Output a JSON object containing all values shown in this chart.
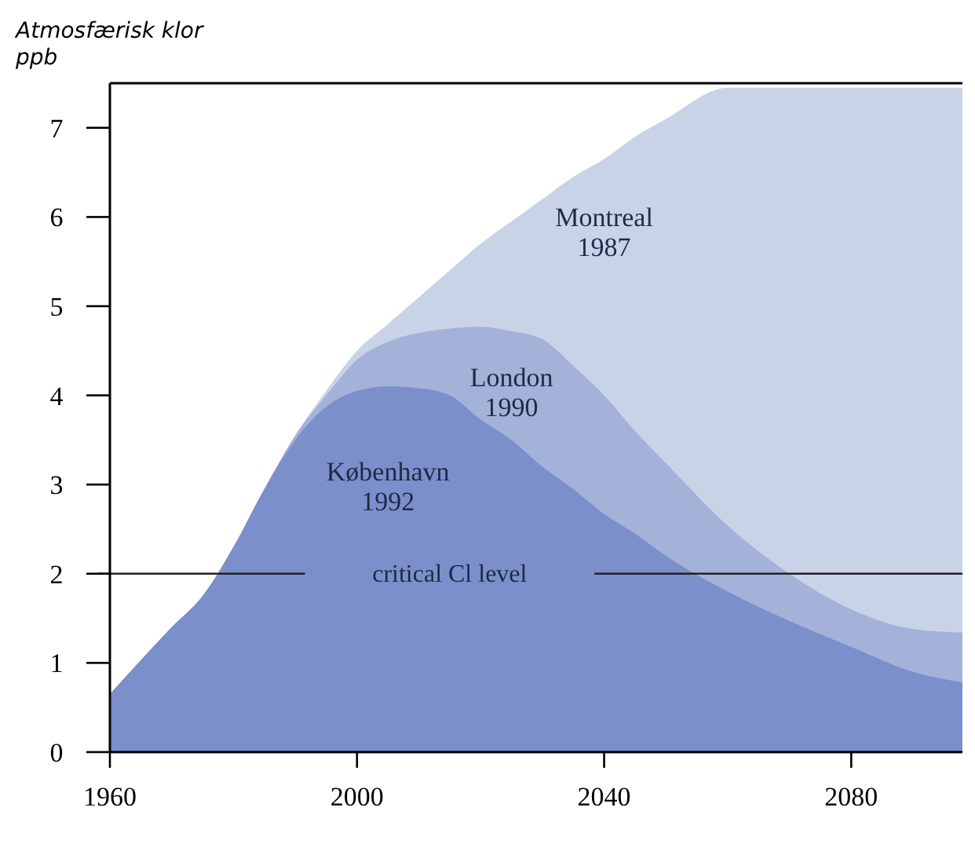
{
  "chart_data": {
    "type": "area",
    "title": "Atmosfærisk klor",
    "ylabel": "ppb",
    "x": [
      1960,
      1970,
      1975,
      1980,
      1985,
      1990,
      1995,
      2000,
      2005,
      2010,
      2015,
      2020,
      2025,
      2030,
      2035,
      2040,
      2045,
      2050,
      2060,
      2070,
      2080,
      2090,
      2098
    ],
    "series": [
      {
        "name": "Montreal 1987",
        "color": "#c9d3e7",
        "values": [
          0.65,
          1.4,
          1.75,
          2.3,
          2.95,
          3.55,
          4.05,
          4.5,
          4.8,
          5.1,
          5.4,
          5.7,
          5.95,
          6.2,
          6.45,
          6.65,
          6.9,
          7.1,
          7.45,
          7.45,
          7.45,
          7.45,
          7.45
        ]
      },
      {
        "name": "London 1990",
        "color": "#a4b1d9",
        "values": [
          0.65,
          1.4,
          1.75,
          2.3,
          2.95,
          3.55,
          4.0,
          4.4,
          4.6,
          4.7,
          4.75,
          4.77,
          4.72,
          4.63,
          4.33,
          4.0,
          3.6,
          3.24,
          2.54,
          2.0,
          1.6,
          1.38,
          1.34
        ]
      },
      {
        "name": "København 1992",
        "color": "#7b8fcb",
        "values": [
          0.65,
          1.4,
          1.75,
          2.3,
          2.95,
          3.5,
          3.87,
          4.05,
          4.1,
          4.08,
          4.0,
          3.73,
          3.5,
          3.2,
          2.95,
          2.67,
          2.45,
          2.2,
          1.8,
          1.47,
          1.18,
          0.9,
          0.78
        ]
      }
    ],
    "xlim": [
      1960,
      2098
    ],
    "xticks": [
      1960,
      2000,
      2040,
      2080
    ],
    "ylim": [
      0,
      7.5
    ],
    "yticks": [
      0,
      1,
      2,
      3,
      4,
      5,
      6,
      7
    ],
    "ref_lines": [
      {
        "axis": "y",
        "value": 2,
        "label": "critical Cl level",
        "color": "#222222"
      }
    ],
    "grid": false
  }
}
